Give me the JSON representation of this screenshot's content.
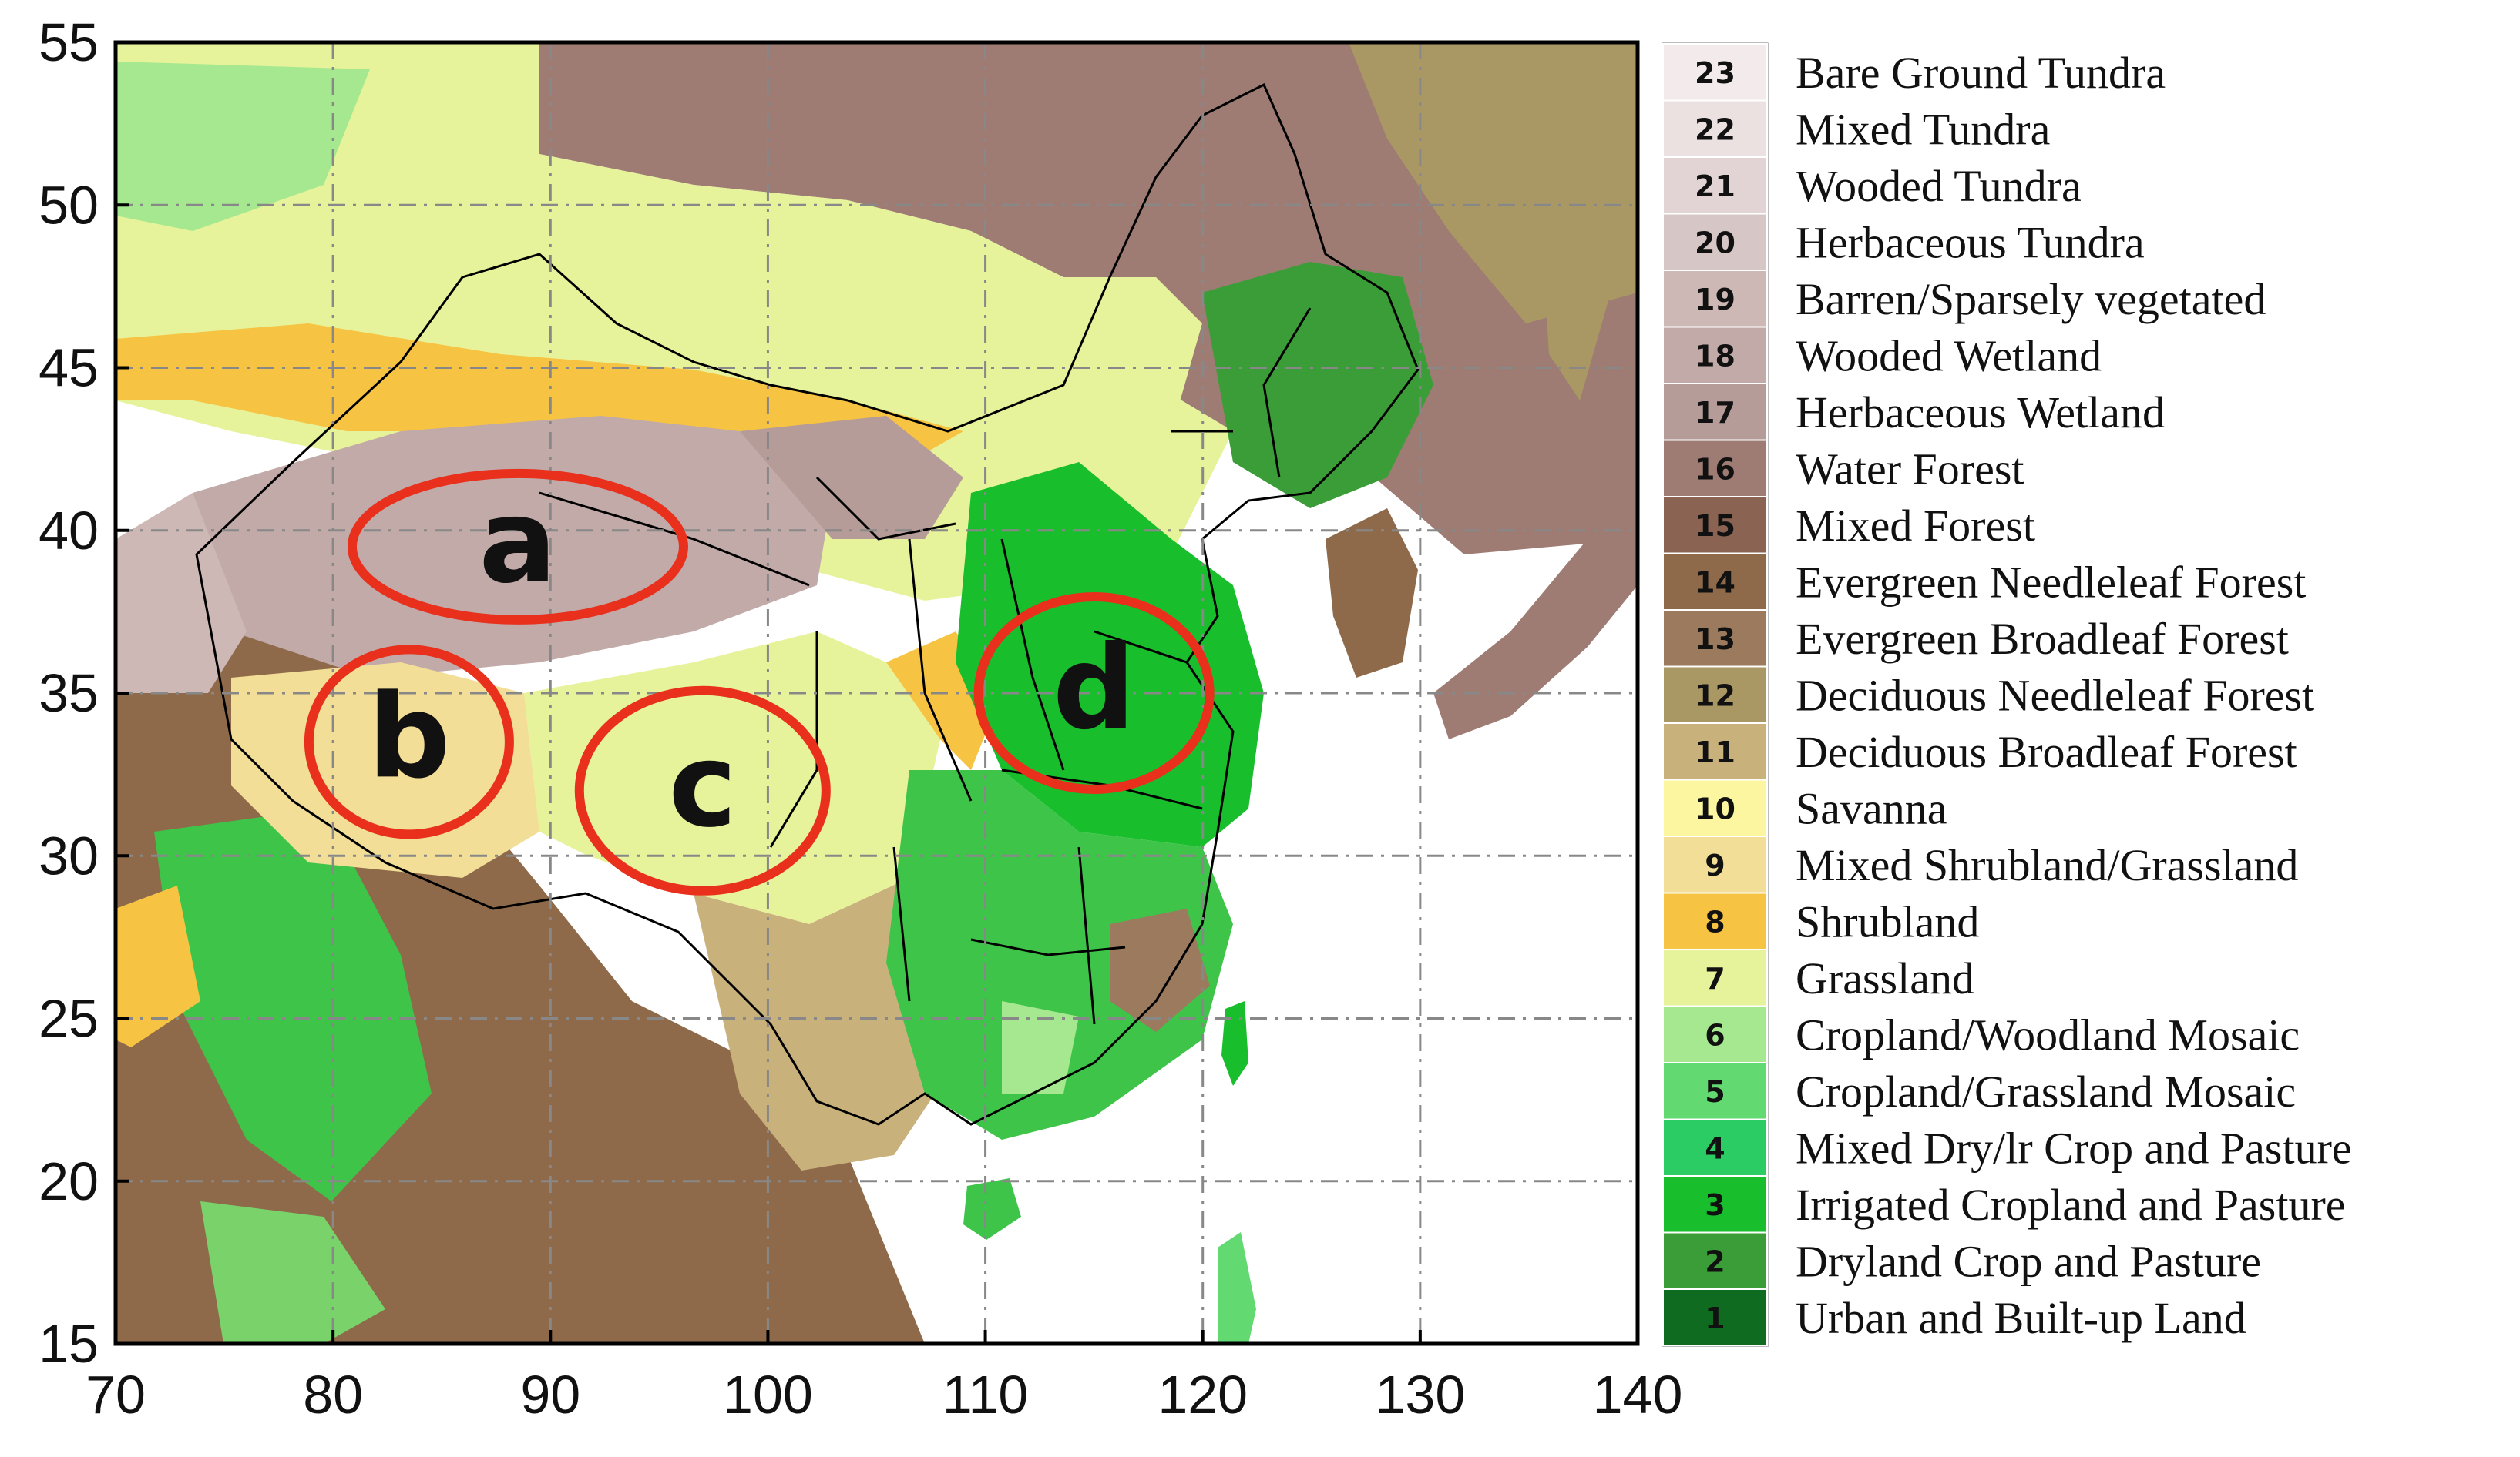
{
  "map": {
    "x_axis": {
      "min": 70,
      "max": 140,
      "ticks": [
        "70",
        "80",
        "90",
        "100",
        "110",
        "120",
        "130",
        "140"
      ]
    },
    "y_axis": {
      "min": 15,
      "max": 55,
      "ticks": [
        "55",
        "50",
        "45",
        "40",
        "35",
        "30",
        "25",
        "20",
        "15"
      ]
    },
    "grid": true,
    "regions": [
      {
        "label": "a",
        "lon": 88.5,
        "lat": 39.5
      },
      {
        "label": "b",
        "lon": 83.5,
        "lat": 33.5
      },
      {
        "label": "c",
        "lon": 97.0,
        "lat": 32.0
      },
      {
        "label": "d",
        "lon": 115.0,
        "lat": 35.0
      }
    ],
    "region_outline_color": "#e8301c"
  },
  "legend": [
    {
      "code": "23",
      "name": "Bare Ground Tundra",
      "color": "#f3ebeb"
    },
    {
      "code": "22",
      "name": "Mixed Tundra",
      "color": "#ece1e1"
    },
    {
      "code": "21",
      "name": "Wooded Tundra",
      "color": "#e2d4d4"
    },
    {
      "code": "20",
      "name": "Herbaceous Tundra",
      "color": "#d7c6c6"
    },
    {
      "code": "19",
      "name": "Barren/Sparsely vegetated",
      "color": "#cdb8b6"
    },
    {
      "code": "18",
      "name": "Wooded Wetland",
      "color": "#c1aaa8"
    },
    {
      "code": "17",
      "name": "Herbaceous Wetland",
      "color": "#b59c99"
    },
    {
      "code": "16",
      "name": "Water Forest",
      "color": "#9e7c73"
    },
    {
      "code": "15",
      "name": "Mixed Forest",
      "color": "#8a6353"
    },
    {
      "code": "14",
      "name": "Evergreen Needleleaf Forest",
      "color": "#8e6a4a"
    },
    {
      "code": "13",
      "name": "Evergreen Broadleaf Forest",
      "color": "#9c7a5e"
    },
    {
      "code": "12",
      "name": "Deciduous Needleleaf Forest",
      "color": "#aa9864"
    },
    {
      "code": "11",
      "name": "Deciduous Broadleaf Forest",
      "color": "#c9b17c"
    },
    {
      "code": "10",
      "name": "Savanna",
      "color": "#fdf6a0"
    },
    {
      "code": "9",
      "name": "Mixed Shrubland/Grassland",
      "color": "#f2de96"
    },
    {
      "code": "8",
      "name": "Shrubland",
      "color": "#f7c342"
    },
    {
      "code": "7",
      "name": "Grassland",
      "color": "#e6f39a"
    },
    {
      "code": "6",
      "name": "Cropland/Woodland Mosaic",
      "color": "#a5e88f"
    },
    {
      "code": "5",
      "name": "Cropland/Grassland Mosaic",
      "color": "#63d972"
    },
    {
      "code": "4",
      "name": "Mixed Dry/lr Crop and Pasture",
      "color": "#2bcc63"
    },
    {
      "code": "3",
      "name": "Irrigated Cropland and Pasture",
      "color": "#19be2c"
    },
    {
      "code": "2",
      "name": "Dryland Crop and Pasture",
      "color": "#3b9d38"
    },
    {
      "code": "1",
      "name": "Urban and Built-up Land",
      "color": "#0f6b1f"
    }
  ]
}
